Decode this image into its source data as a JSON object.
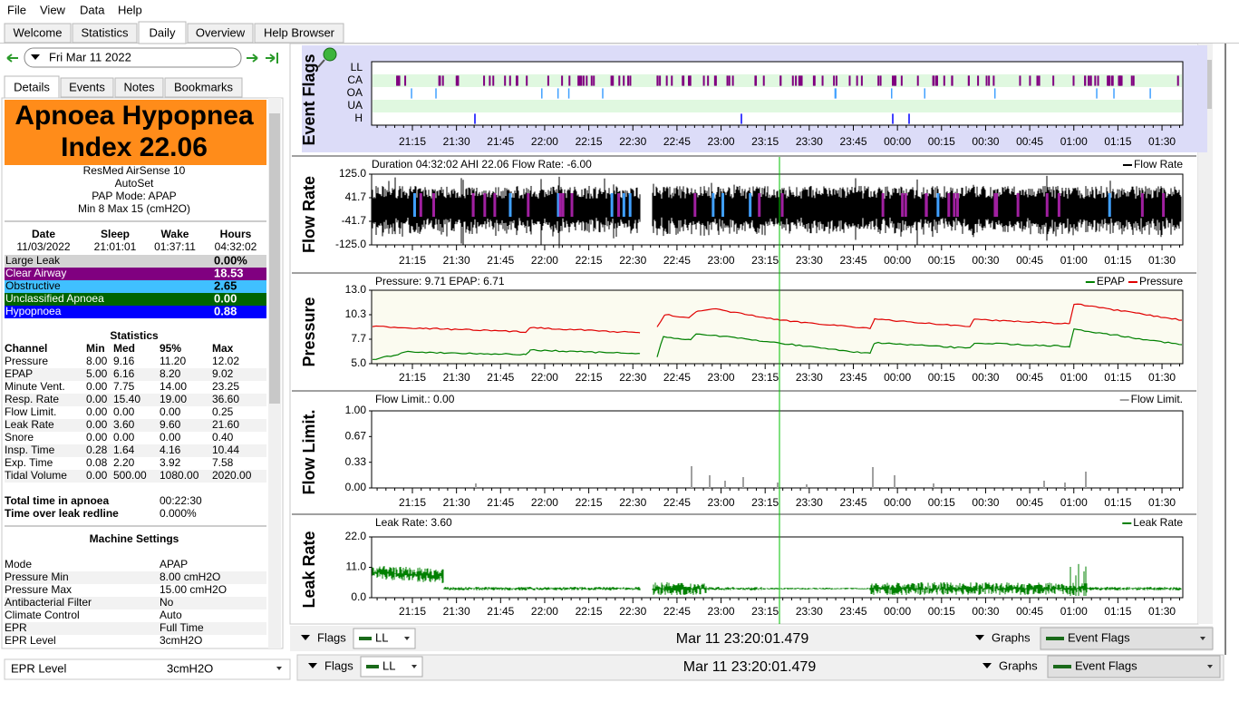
{
  "menu": [
    "File",
    "View",
    "Data",
    "Help"
  ],
  "tabs": [
    "Welcome",
    "Statistics",
    "Daily",
    "Overview",
    "Help Browser"
  ],
  "active_tab": 2,
  "date": "Fri Mar 11 2022",
  "subtabs": [
    "Details",
    "Events",
    "Notes",
    "Bookmarks"
  ],
  "active_subtab": 0,
  "banner": [
    "Apnoea Hypopnea",
    "Index 22.06"
  ],
  "machine": [
    "ResMed AirSense 10",
    "AutoSet",
    "PAP Mode: APAP",
    "Min 8 Max 15 (cmH2O)"
  ],
  "session": {
    "headers": [
      "Date",
      "Sleep",
      "Wake",
      "Hours"
    ],
    "row": [
      "11/03/2022",
      "21:01:01",
      "01:37:11",
      "04:32:02"
    ]
  },
  "indices": [
    {
      "label": "Large Leak",
      "value": "0.00%",
      "color": "#d3d3d3"
    },
    {
      "label": "Clear Airway",
      "value": "18.53",
      "color": "#800080"
    },
    {
      "label": "Obstructive",
      "value": "2.65",
      "color": "#40c0ff"
    },
    {
      "label": "Unclassified Apnoea",
      "value": "0.00",
      "color": "#006400"
    },
    {
      "label": "Hypopnoea",
      "value": "0.88",
      "color": "#0000ff"
    }
  ],
  "statistics": {
    "title": "Statistics",
    "headers": [
      "Channel",
      "Min",
      "Med",
      "95%",
      "Max"
    ],
    "rows": [
      [
        "Pressure",
        "8.00",
        "9.16",
        "11.20",
        "12.02"
      ],
      [
        "EPAP",
        "5.00",
        "6.16",
        "8.20",
        "9.02"
      ],
      [
        "Minute Vent.",
        "0.00",
        "7.75",
        "14.00",
        "23.25"
      ],
      [
        "Resp. Rate",
        "0.00",
        "15.40",
        "19.00",
        "36.60"
      ],
      [
        "Flow Limit.",
        "0.00",
        "0.00",
        "0.00",
        "0.25"
      ],
      [
        "Leak Rate",
        "0.00",
        "3.60",
        "9.60",
        "21.60"
      ],
      [
        "Snore",
        "0.00",
        "0.00",
        "0.00",
        "0.40"
      ],
      [
        "Insp. Time",
        "0.28",
        "1.64",
        "4.16",
        "10.44"
      ],
      [
        "Exp. Time",
        "0.08",
        "2.20",
        "3.92",
        "7.58"
      ],
      [
        "Tidal Volume",
        "0.00",
        "500.00",
        "1080.00",
        "2020.00"
      ]
    ]
  },
  "totals": [
    [
      "Total time in apnoea",
      "00:22:30"
    ],
    [
      "Time over leak redline",
      "0.000%"
    ]
  ],
  "machine_settings": {
    "title": "Machine Settings",
    "rows": [
      [
        "Mode",
        "APAP"
      ],
      [
        "Pressure Min",
        "8.00 cmH2O"
      ],
      [
        "Pressure Max",
        "15.00 cmH2O"
      ],
      [
        "Antibacterial Filter",
        "No"
      ],
      [
        "Climate Control",
        "Auto"
      ],
      [
        "EPR",
        "Full Time"
      ],
      [
        "EPR Level",
        "3cmH2O"
      ]
    ]
  },
  "time_ticks": [
    "21:15",
    "21:30",
    "21:45",
    "22:00",
    "22:15",
    "22:30",
    "22:45",
    "23:00",
    "23:15",
    "23:30",
    "23:45",
    "00:00",
    "00:15",
    "00:30",
    "00:45",
    "01:00",
    "01:15",
    "01:30"
  ],
  "graphs": [
    {
      "title": "Event Flags",
      "rows": [
        "LL",
        "CA",
        "OA",
        "UA",
        "H"
      ]
    },
    {
      "title": "Flow Rate",
      "info": "Duration 04:32:02 AHI 22.06 Flow Rate: -6.00",
      "legend": [
        {
          "name": "Flow Rate",
          "color": "#000000"
        }
      ],
      "yticks": [
        "125.0",
        "41.7",
        "-41.7",
        "-125.0"
      ]
    },
    {
      "title": "Pressure",
      "info": "Pressure: 9.71 EPAP: 6.71",
      "legend": [
        {
          "name": "EPAP",
          "color": "#008000"
        },
        {
          "name": "Pressure",
          "color": "#e00000"
        }
      ],
      "yticks": [
        "13.0",
        "10.3",
        "7.7",
        "5.0"
      ]
    },
    {
      "title": "Flow Limit.",
      "info": "Flow Limit.: 0.00",
      "legend": [
        {
          "name": "Flow Limit.",
          "color": "#a0a0a0"
        }
      ],
      "yticks": [
        "1.00",
        "0.67",
        "0.33",
        "0.00"
      ]
    },
    {
      "title": "Leak Rate",
      "info": "Leak Rate: 3.60",
      "legend": [
        {
          "name": "Leak Rate",
          "color": "#008000"
        }
      ],
      "yticks": [
        "22.0",
        "11.0",
        "0.0"
      ]
    }
  ],
  "footer": {
    "flags_label": "Flags",
    "flags_value": "LL",
    "time": "Mar 11 23:20:01.479",
    "graphs_label": "Graphs",
    "graphs_value": "Event Flags"
  }
}
